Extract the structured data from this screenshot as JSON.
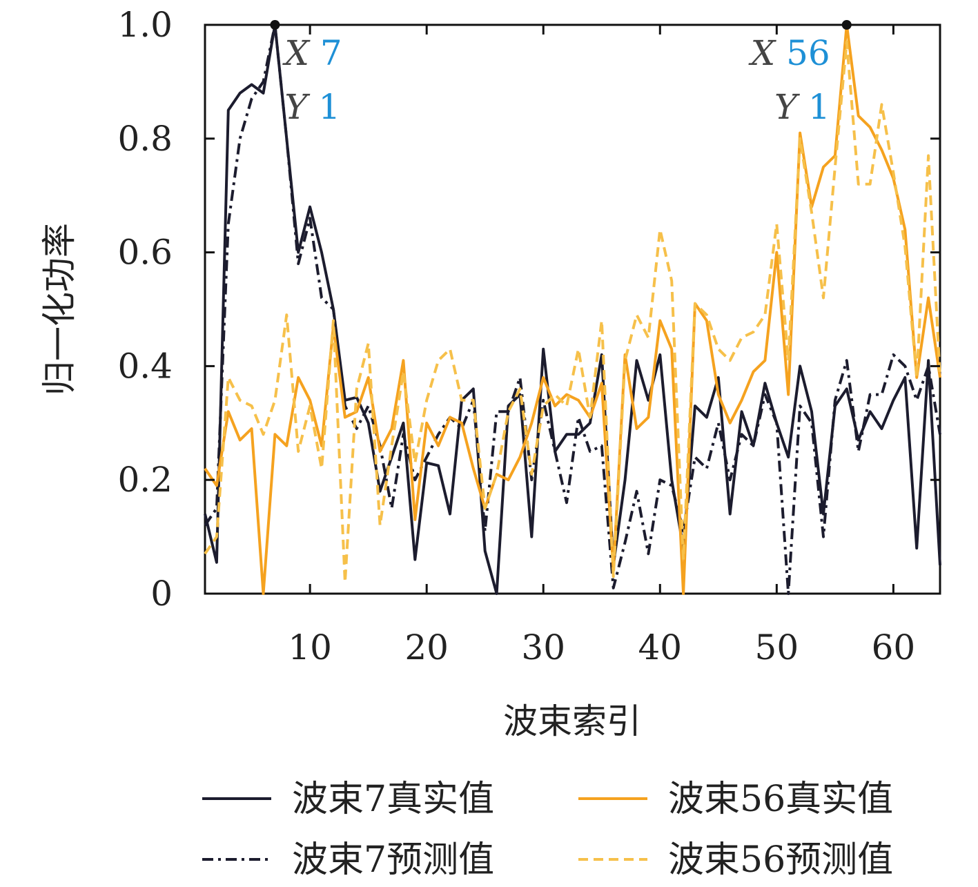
{
  "chart_data": {
    "type": "line",
    "xlabel": "波束索引",
    "ylabel": "归一化功率",
    "xlim": [
      1,
      64
    ],
    "ylim": [
      0,
      1
    ],
    "xticks": [
      10,
      20,
      30,
      40,
      50,
      60
    ],
    "yticks": [
      0,
      0.2,
      0.4,
      0.6,
      0.8,
      1.0
    ],
    "ytick_labels": [
      "0",
      "0.2",
      "0.4",
      "0.6",
      "0.8",
      "1.0"
    ],
    "grid": false,
    "legend_position": "bottom",
    "x": [
      1,
      2,
      3,
      4,
      5,
      6,
      7,
      8,
      9,
      10,
      11,
      12,
      13,
      14,
      15,
      16,
      17,
      18,
      19,
      20,
      21,
      22,
      23,
      24,
      25,
      26,
      27,
      28,
      29,
      30,
      31,
      32,
      33,
      34,
      35,
      36,
      37,
      38,
      39,
      40,
      41,
      42,
      43,
      44,
      45,
      46,
      47,
      48,
      49,
      50,
      51,
      52,
      53,
      54,
      55,
      56,
      57,
      58,
      59,
      60,
      61,
      62,
      63,
      64
    ],
    "series": [
      {
        "name": "波束7真实值",
        "color": "#1c1c2e",
        "dash": "solid",
        "values": [
          0.14,
          0.055,
          0.85,
          0.88,
          0.895,
          0.88,
          1.0,
          0.8,
          0.6,
          0.68,
          0.6,
          0.5,
          0.34,
          0.345,
          0.3,
          0.18,
          0.24,
          0.3,
          0.06,
          0.23,
          0.225,
          0.14,
          0.34,
          0.36,
          0.075,
          0.0,
          0.33,
          0.35,
          0.1,
          0.43,
          0.25,
          0.28,
          0.28,
          0.3,
          0.42,
          0.05,
          0.2,
          0.41,
          0.34,
          0.42,
          0.2,
          0.08,
          0.33,
          0.31,
          0.38,
          0.14,
          0.32,
          0.26,
          0.37,
          0.3,
          0.24,
          0.4,
          0.32,
          0.14,
          0.33,
          0.36,
          0.27,
          0.32,
          0.29,
          0.34,
          0.38,
          0.08,
          0.41,
          0.05
        ]
      },
      {
        "name": "波束7预测值",
        "color": "#1c1c2e",
        "dash": "dashdot",
        "values": [
          0.12,
          0.15,
          0.65,
          0.8,
          0.87,
          0.9,
          1.0,
          0.8,
          0.58,
          0.66,
          0.52,
          0.5,
          0.33,
          0.29,
          0.33,
          0.26,
          0.15,
          0.28,
          0.2,
          0.24,
          0.28,
          0.31,
          0.29,
          0.34,
          0.11,
          0.32,
          0.32,
          0.38,
          0.2,
          0.34,
          0.25,
          0.16,
          0.31,
          0.25,
          0.26,
          0.01,
          0.09,
          0.18,
          0.07,
          0.2,
          0.19,
          0.11,
          0.24,
          0.22,
          0.3,
          0.2,
          0.28,
          0.26,
          0.35,
          0.3,
          0.0,
          0.33,
          0.3,
          0.1,
          0.34,
          0.41,
          0.25,
          0.35,
          0.35,
          0.42,
          0.4,
          0.34,
          0.4,
          0.28
        ]
      },
      {
        "name": "波束56真实值",
        "color": "#f5a21f",
        "dash": "solid",
        "values": [
          0.22,
          0.19,
          0.32,
          0.27,
          0.29,
          0.0,
          0.28,
          0.26,
          0.38,
          0.34,
          0.26,
          0.47,
          0.31,
          0.32,
          0.38,
          0.25,
          0.29,
          0.41,
          0.13,
          0.3,
          0.26,
          0.31,
          0.3,
          0.22,
          0.15,
          0.21,
          0.2,
          0.24,
          0.3,
          0.38,
          0.33,
          0.35,
          0.34,
          0.31,
          0.37,
          0.04,
          0.42,
          0.29,
          0.31,
          0.48,
          0.43,
          0.0,
          0.51,
          0.48,
          0.35,
          0.3,
          0.34,
          0.39,
          0.41,
          0.6,
          0.35,
          0.81,
          0.68,
          0.75,
          0.77,
          1.0,
          0.84,
          0.82,
          0.78,
          0.73,
          0.64,
          0.38,
          0.52,
          0.38
        ]
      },
      {
        "name": "波束56预测值",
        "color": "#f6c04a",
        "dash": "dashed",
        "values": [
          0.07,
          0.1,
          0.38,
          0.34,
          0.33,
          0.28,
          0.34,
          0.49,
          0.25,
          0.33,
          0.22,
          0.48,
          0.02,
          0.36,
          0.44,
          0.12,
          0.26,
          0.39,
          0.23,
          0.34,
          0.41,
          0.43,
          0.34,
          0.34,
          0.15,
          0.21,
          0.32,
          0.36,
          0.21,
          0.33,
          0.35,
          0.33,
          0.43,
          0.31,
          0.48,
          0.03,
          0.41,
          0.49,
          0.45,
          0.64,
          0.55,
          0.06,
          0.51,
          0.49,
          0.43,
          0.41,
          0.45,
          0.46,
          0.49,
          0.65,
          0.41,
          0.8,
          0.67,
          0.52,
          0.75,
          0.97,
          0.72,
          0.72,
          0.86,
          0.74,
          0.61,
          0.38,
          0.77,
          0.38
        ]
      }
    ],
    "annotations": [
      {
        "x": 7,
        "y": 1,
        "x_key": "X",
        "x_value": "7",
        "y_key": "Y",
        "y_value": "1"
      },
      {
        "x": 56,
        "y": 1,
        "x_key": "X",
        "x_value": "56",
        "y_key": "Y",
        "y_value": "1"
      }
    ]
  }
}
